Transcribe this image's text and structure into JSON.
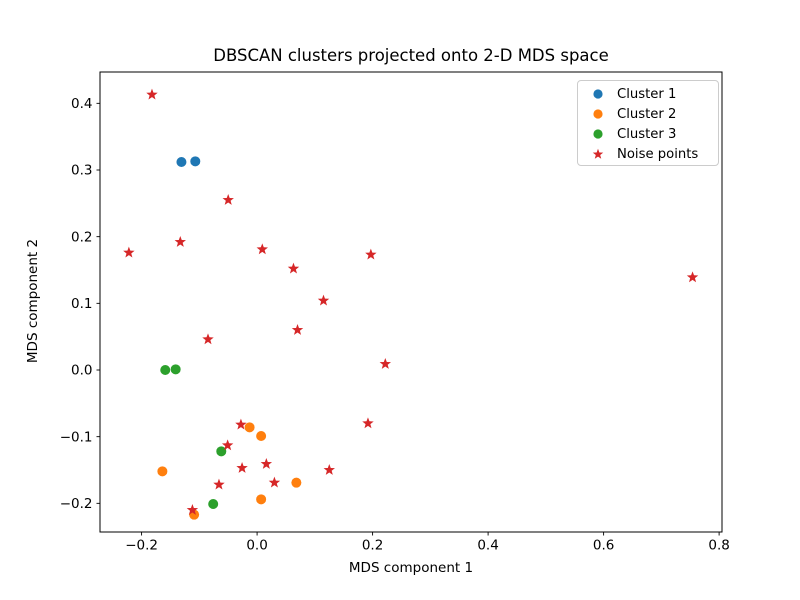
{
  "chart_data": {
    "type": "scatter",
    "title": "DBSCAN clusters projected onto 2-D MDS space",
    "xlabel": "MDS component 1",
    "ylabel": "MDS component 2",
    "xlim": [
      -0.272,
      0.805
    ],
    "ylim": [
      -0.243,
      0.447
    ],
    "x_ticks": [
      -0.2,
      0.0,
      0.2,
      0.4,
      0.6,
      0.8
    ],
    "y_ticks": [
      -0.2,
      -0.1,
      0.0,
      0.1,
      0.2,
      0.3,
      0.4
    ],
    "grid": false,
    "legend_position": "upper right",
    "background_color": "#ffffff",
    "axis_color": "#000000",
    "series": [
      {
        "name": "Cluster 1",
        "marker": "circle",
        "color": "#1f77b4",
        "points": [
          [
            -0.131,
            0.312
          ],
          [
            -0.107,
            0.313
          ]
        ]
      },
      {
        "name": "Cluster 2",
        "marker": "circle",
        "color": "#ff7f0e",
        "points": [
          [
            -0.164,
            -0.152
          ],
          [
            -0.109,
            -0.217
          ],
          [
            -0.013,
            -0.086
          ],
          [
            0.007,
            -0.099
          ],
          [
            0.007,
            -0.194
          ],
          [
            0.068,
            -0.169
          ]
        ]
      },
      {
        "name": "Cluster 3",
        "marker": "circle",
        "color": "#2ca02c",
        "points": [
          [
            -0.159,
            0.0
          ],
          [
            -0.141,
            0.001
          ],
          [
            -0.062,
            -0.122
          ],
          [
            -0.076,
            -0.201
          ]
        ]
      },
      {
        "name": "Noise points",
        "marker": "star",
        "color": "#d62728",
        "points": [
          [
            -0.182,
            0.413
          ],
          [
            -0.222,
            0.176
          ],
          [
            -0.133,
            0.192
          ],
          [
            -0.05,
            0.255
          ],
          [
            0.009,
            0.181
          ],
          [
            0.063,
            0.152
          ],
          [
            0.197,
            0.173
          ],
          [
            0.115,
            0.104
          ],
          [
            0.07,
            0.06
          ],
          [
            -0.085,
            0.046
          ],
          [
            0.222,
            0.009
          ],
          [
            0.754,
            0.139
          ],
          [
            0.192,
            -0.08
          ],
          [
            -0.028,
            -0.082
          ],
          [
            -0.051,
            -0.113
          ],
          [
            0.016,
            -0.141
          ],
          [
            -0.026,
            -0.147
          ],
          [
            0.125,
            -0.15
          ],
          [
            0.03,
            -0.169
          ],
          [
            -0.066,
            -0.172
          ],
          [
            -0.112,
            -0.21
          ]
        ]
      }
    ]
  }
}
